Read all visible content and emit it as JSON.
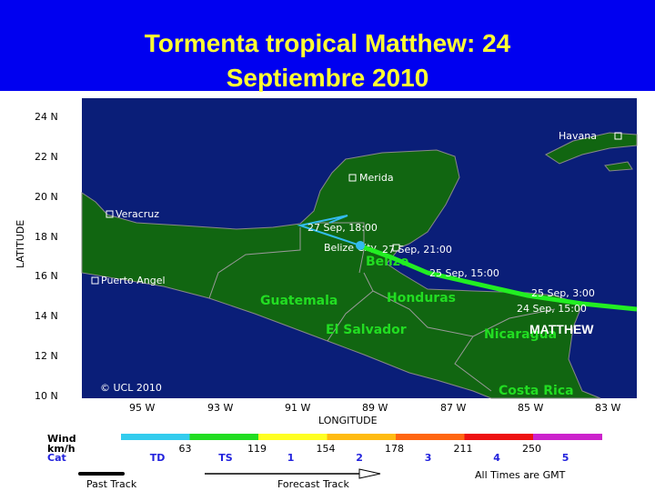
{
  "title": {
    "line1": "Tormenta tropical Matthew: 24",
    "line2": "Septiembre  2010"
  },
  "map": {
    "lat_ticks": [
      "24 N",
      "22 N",
      "20 N",
      "18 N",
      "16 N",
      "14 N",
      "12 N",
      "10 N"
    ],
    "lon_ticks": [
      "95 W",
      "93 W",
      "91 W",
      "89 W",
      "87 W",
      "85 W",
      "83 W"
    ],
    "ylabel": "LATITUDE",
    "xlabel": "LONGITUDE",
    "cities": [
      "Havana",
      "Merida",
      "Veracruz",
      "Belize City",
      "Puerto Angel"
    ],
    "countries": [
      "Belize",
      "Guatemala",
      "Honduras",
      "El Salvador",
      "Nicaragua",
      "Costa Rica"
    ],
    "track_labels": [
      "27 Sep, 18:00",
      "27 Sep, 21:00",
      "25 Sep, 15:00",
      "25 Sep, 3:00",
      "24 Sep, 15:00"
    ],
    "storm_name": "MATTHEW",
    "copyright": "© UCL 2010",
    "colors": {
      "ocean": "#0a1e78",
      "land": "#116611",
      "track": "#22ee22",
      "forecast": "#33bbee"
    }
  },
  "legend": {
    "wind_label": "Wind",
    "unit_label": "km/h",
    "cat_label": "Cat",
    "colors": [
      "#33ccee",
      "#22dd22",
      "#ffff22",
      "#ffbb11",
      "#ff6611",
      "#ee1111",
      "#cc22cc"
    ],
    "thresholds": [
      "63",
      "119",
      "154",
      "178",
      "211",
      "250"
    ],
    "categories": [
      "TD",
      "TS",
      "1",
      "2",
      "3",
      "4",
      "5"
    ],
    "past_track": "Past Track",
    "forecast_track": "Forecast Track",
    "times_note": "All Times are GMT"
  }
}
